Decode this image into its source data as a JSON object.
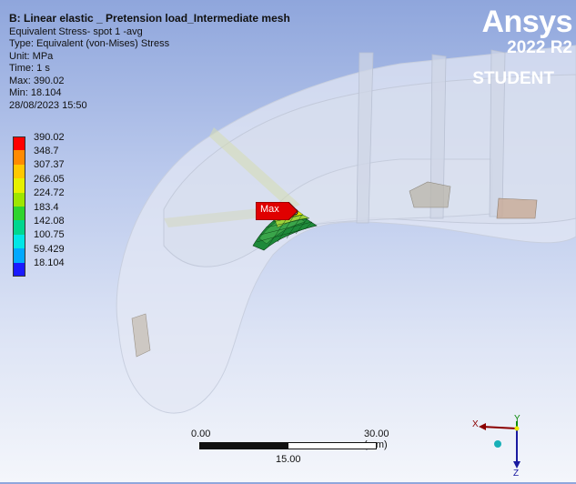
{
  "info": {
    "title": "B: Linear elastic _ Pretension load_Intermediate mesh",
    "lines": [
      "Equivalent Stress- spot 1 -avg",
      "Type: Equivalent (von-Mises) Stress",
      "Unit: MPa",
      "Time: 1 s",
      "Max: 390.02",
      "Min: 18.104",
      "28/08/2023 15:50"
    ]
  },
  "legend": {
    "labels": [
      "390.02",
      "348.7",
      "307.37",
      "266.05",
      "224.72",
      "183.4",
      "142.08",
      "100.75",
      "59.429",
      "18.104"
    ],
    "colors": [
      "#ff0000",
      "#ff8a00",
      "#ffc800",
      "#e6f000",
      "#9ee600",
      "#2ed42e",
      "#00d68f",
      "#00e6e6",
      "#00a8ff",
      "#1a1aff"
    ]
  },
  "brand": {
    "name": "Ansys",
    "version": "2022 R2",
    "edition": "STUDENT"
  },
  "probe": {
    "label": "Max"
  },
  "scale": {
    "left": "0.00",
    "right": "30.00 (mm)",
    "mid": "15.00"
  },
  "triad": {
    "x": "X",
    "y": "Y",
    "z": "Z"
  }
}
